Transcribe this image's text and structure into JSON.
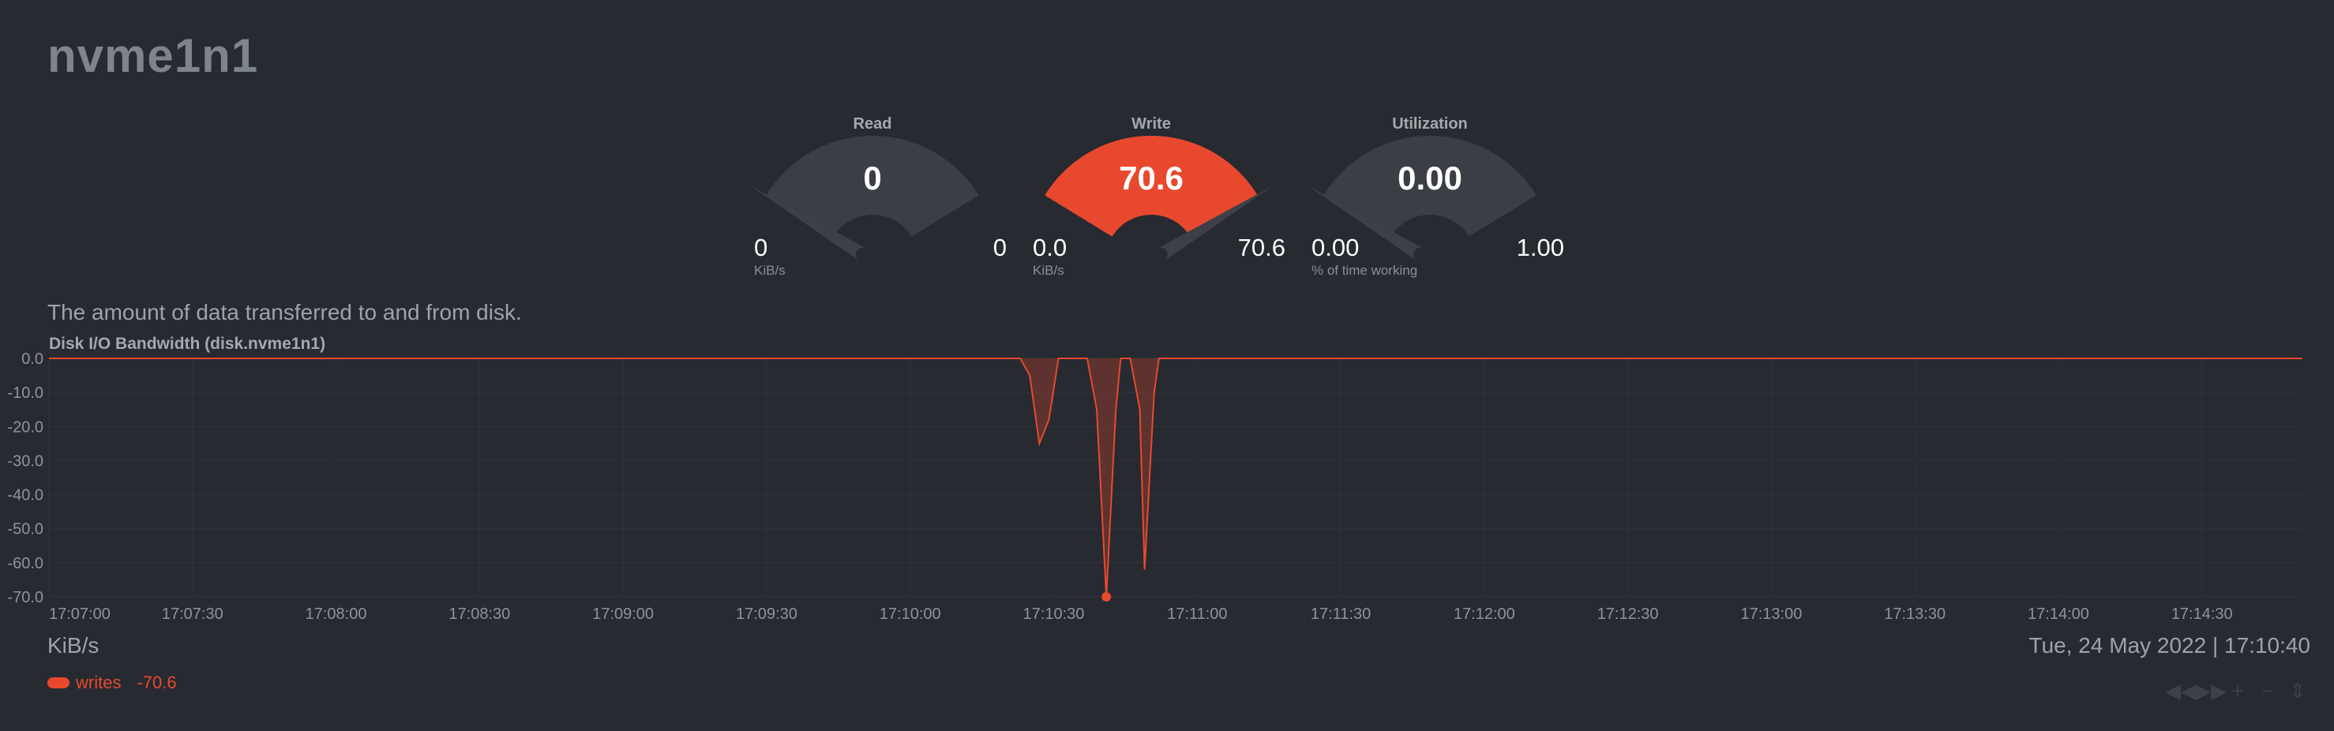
{
  "page": {
    "title": "nvme1n1"
  },
  "gauges": [
    {
      "label": "Read",
      "value": "0",
      "min": "0",
      "max": "0",
      "units": "KiB/s",
      "fraction": 0
    },
    {
      "label": "Write",
      "value": "70.6",
      "min": "0.0",
      "max": "70.6",
      "units": "KiB/s",
      "fraction": 1
    },
    {
      "label": "Utilization",
      "value": "0.00",
      "min": "0.00",
      "max": "1.00",
      "units": "% of time working",
      "fraction": 0
    }
  ],
  "description": "The amount of data transferred to and from disk.",
  "colors": {
    "accent": "#e8492e",
    "background": "#272a30",
    "gauge_track": "#3b3e44"
  },
  "chart_data": {
    "type": "area",
    "title": "Disk I/O Bandwidth (disk.nvme1n1)",
    "ylabel": "KiB/s",
    "ylim": [
      -70,
      0
    ],
    "yticks": [
      "0.0",
      "-10.0",
      "-20.0",
      "-30.0",
      "-40.0",
      "-50.0",
      "-60.0",
      "-70.0"
    ],
    "xtick_labels": [
      "17:07:00",
      "17:07:30",
      "17:08:00",
      "17:08:30",
      "17:09:00",
      "17:09:30",
      "17:10:00",
      "17:10:30",
      "17:11:00",
      "17:11:30",
      "17:12:00",
      "17:12:30",
      "17:13:00",
      "17:13:30",
      "17:14:00",
      "17:14:30"
    ],
    "x_range": [
      "17:07:00",
      "17:14:51"
    ],
    "grid": true,
    "series": [
      {
        "name": "writes",
        "points": [
          [
            "17:07:00",
            0
          ],
          [
            "17:10:23",
            0
          ],
          [
            "17:10:25",
            -5
          ],
          [
            "17:10:27",
            -25
          ],
          [
            "17:10:29",
            -18
          ],
          [
            "17:10:31",
            0
          ],
          [
            "17:10:37",
            0
          ],
          [
            "17:10:39",
            -15
          ],
          [
            "17:10:41",
            -70
          ],
          [
            "17:10:43",
            -15
          ],
          [
            "17:10:44",
            0
          ],
          [
            "17:10:46",
            0
          ],
          [
            "17:10:48",
            -15
          ],
          [
            "17:10:49",
            -62
          ],
          [
            "17:10:51",
            -10
          ],
          [
            "17:10:52",
            0
          ],
          [
            "17:14:51",
            0
          ]
        ]
      }
    ]
  },
  "legend": {
    "series": "writes",
    "value": "-70.6"
  },
  "footer": {
    "units": "KiB/s",
    "datetime": "Tue, 24 May 2022 | 17:10:40"
  },
  "controls": [
    "◀◀",
    "▶▶",
    "+",
    "−",
    "⇕"
  ]
}
